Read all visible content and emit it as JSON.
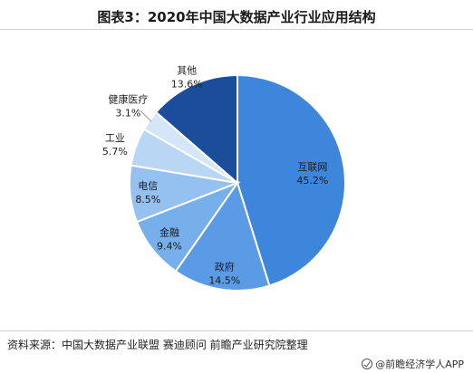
{
  "title": "图表3：2020年中国大数据产业行业应用结构",
  "footer": {
    "source": "资料来源：中国大数据产业联盟 赛迪顾问 前瞻产业研究院整理",
    "brand": "@前瞻经济学人APP"
  },
  "colors": {
    "互联网": "#3d86dc",
    "政府": "#5b9be6",
    "金融": "#77afea",
    "电信": "#95c1f0",
    "工业": "#b9d6f5",
    "健康医疗": "#d5e6f9",
    "其他": "#1b4d9a"
  },
  "chart_data": {
    "type": "pie",
    "title": "图表3：2020年中国大数据产业行业应用结构",
    "categories": [
      "互联网",
      "政府",
      "金融",
      "电信",
      "工业",
      "健康医疗",
      "其他"
    ],
    "values": [
      45.2,
      14.5,
      9.4,
      8.5,
      5.7,
      3.1,
      13.6
    ],
    "value_labels": [
      "45.2%",
      "14.5%",
      "9.4%",
      "8.5%",
      "5.7%",
      "3.1%",
      "13.6%"
    ],
    "start": "12 o'clock",
    "direction": "clockwise",
    "legend": "none"
  }
}
